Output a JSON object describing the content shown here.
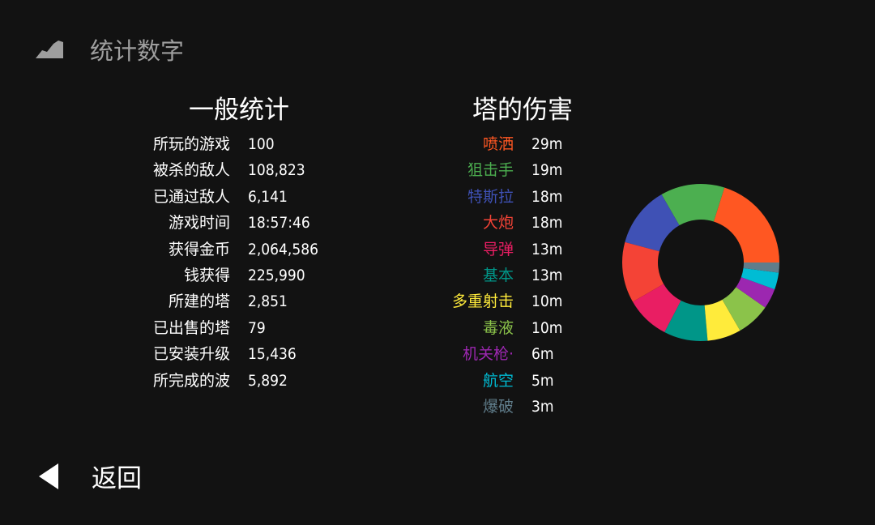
{
  "header": {
    "title": "统计数字",
    "icon": "chart-area-icon"
  },
  "general": {
    "heading": "一般统计",
    "rows": [
      {
        "label": "所玩的游戏",
        "value": "100"
      },
      {
        "label": "被杀的敌人",
        "value": "108,823"
      },
      {
        "label": "已通过敌人",
        "value": "6,141"
      },
      {
        "label": "游戏时间",
        "value": "18:57:46"
      },
      {
        "label": "获得金币",
        "value": "2,064,586"
      },
      {
        "label": "钱获得",
        "value": "225,990"
      },
      {
        "label": "所建的塔",
        "value": "2,851"
      },
      {
        "label": "已出售的塔",
        "value": "79"
      },
      {
        "label": "已安装升级",
        "value": "15,436"
      },
      {
        "label": "所完成的波",
        "value": "5,892"
      }
    ]
  },
  "damage": {
    "heading": "塔的伤害",
    "rows": [
      {
        "label": "喷洒",
        "value": "29m",
        "color": "#FF5722"
      },
      {
        "label": "狙击手",
        "value": "19m",
        "color": "#4CAF50"
      },
      {
        "label": "特斯拉",
        "value": "18m",
        "color": "#3F51B5"
      },
      {
        "label": "大炮",
        "value": "18m",
        "color": "#F44336"
      },
      {
        "label": "导弹",
        "value": "13m",
        "color": "#E91E63"
      },
      {
        "label": "基本",
        "value": "13m",
        "color": "#009688"
      },
      {
        "label": "多重射击",
        "value": "10m",
        "color": "#FFEB3B"
      },
      {
        "label": "毒液",
        "value": "10m",
        "color": "#8BC34A"
      },
      {
        "label": "机关枪·",
        "value": "6m",
        "color": "#9C27B0"
      },
      {
        "label": "航空",
        "value": "5m",
        "color": "#00BCD4"
      },
      {
        "label": "爆破",
        "value": "3m",
        "color": "#607D8B"
      }
    ]
  },
  "chart_data": {
    "type": "pie",
    "style": "donut",
    "categories": [
      "喷洒",
      "狙击手",
      "特斯拉",
      "大炮",
      "导弹",
      "基本",
      "多重射击",
      "毒液",
      "机关枪·",
      "航空",
      "爆破"
    ],
    "values": [
      29,
      19,
      18,
      18,
      13,
      13,
      10,
      10,
      6,
      5,
      3
    ],
    "colors": [
      "#FF5722",
      "#4CAF50",
      "#3F51B5",
      "#F44336",
      "#E91E63",
      "#009688",
      "#FFEB3B",
      "#8BC34A",
      "#9C27B0",
      "#00BCD4",
      "#607D8B"
    ],
    "start": "3 o'clock, counter-clockwise"
  },
  "footer": {
    "back_label": "返回",
    "back_icon": "triangle-left-icon"
  }
}
